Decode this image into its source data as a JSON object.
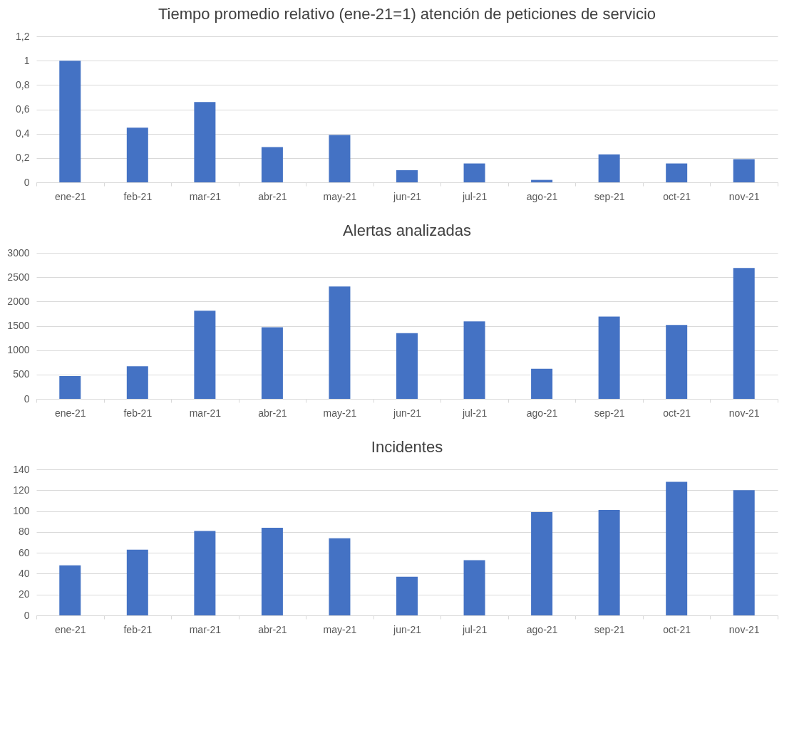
{
  "chart_data": [
    {
      "type": "bar",
      "title": "Tiempo promedio relativo (ene-21=1) atención de peticiones de servicio",
      "categories": [
        "ene-21",
        "feb-21",
        "mar-21",
        "abr-21",
        "may-21",
        "jun-21",
        "jul-21",
        "ago-21",
        "sep-21",
        "oct-21",
        "nov-21"
      ],
      "values": [
        1.0,
        0.45,
        0.66,
        0.29,
        0.39,
        0.1,
        0.155,
        0.02,
        0.23,
        0.155,
        0.19
      ],
      "color": "#4472c4",
      "ylim": [
        0,
        1.2
      ],
      "yticks": [
        0,
        {
          "value": 0.2,
          "label": "0,2"
        },
        {
          "value": 0.4,
          "label": "0,4"
        },
        {
          "value": 0.6,
          "label": "0,6"
        },
        {
          "value": 0.8,
          "label": "0,8"
        },
        1,
        {
          "value": 1.2,
          "label": "1,2"
        }
      ],
      "grid": "y"
    },
    {
      "type": "bar",
      "title": "Alertas analizadas",
      "categories": [
        "ene-21",
        "feb-21",
        "mar-21",
        "abr-21",
        "may-21",
        "jun-21",
        "jul-21",
        "ago-21",
        "sep-21",
        "oct-21",
        "nov-21"
      ],
      "values": [
        470,
        670,
        1810,
        1470,
        2310,
        1350,
        1590,
        620,
        1690,
        1520,
        2690
      ],
      "color": "#4472c4",
      "ylim": [
        0,
        3000
      ],
      "yticks": [
        0,
        500,
        1000,
        1500,
        2000,
        2500,
        3000
      ],
      "grid": "y"
    },
    {
      "type": "bar",
      "title": "Incidentes",
      "categories": [
        "ene-21",
        "feb-21",
        "mar-21",
        "abr-21",
        "may-21",
        "jun-21",
        "jul-21",
        "ago-21",
        "sep-21",
        "oct-21",
        "nov-21"
      ],
      "values": [
        48,
        63,
        81,
        84,
        74,
        37,
        53,
        99,
        101,
        128,
        120
      ],
      "color": "#4472c4",
      "ylim": [
        0,
        140
      ],
      "yticks": [
        0,
        20,
        40,
        60,
        80,
        100,
        120,
        140
      ],
      "grid": "y"
    }
  ]
}
